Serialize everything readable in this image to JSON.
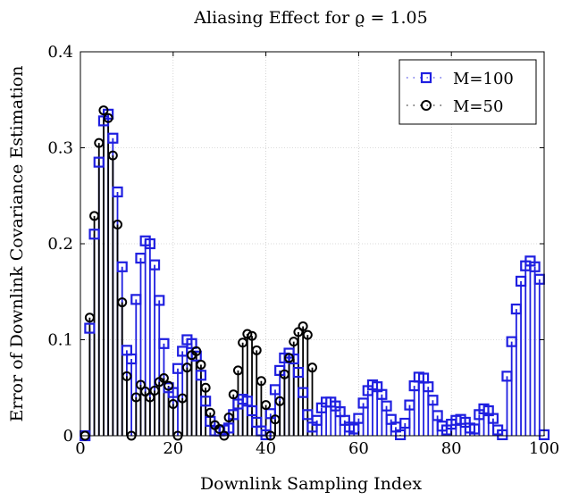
{
  "chart_data": {
    "type": "stem",
    "title": "Aliasing Effect for ϱ = 1.05",
    "xlabel": "Downlink Sampling Index",
    "ylabel": "Error of Downlink Covariance Estimation",
    "xlim": [
      0,
      100
    ],
    "ylim": [
      0,
      0.4
    ],
    "xticks": [
      "0",
      "20",
      "40",
      "60",
      "80",
      "100"
    ],
    "yticks": [
      "0",
      "0.1",
      "0.2",
      "0.3",
      "0.4"
    ],
    "grid": true,
    "legend_position": "top-right",
    "series": [
      {
        "name": "M=100",
        "color": "#1f1fe0",
        "marker": "square",
        "x": [
          1,
          2,
          3,
          4,
          5,
          6,
          7,
          8,
          9,
          10,
          11,
          12,
          13,
          14,
          15,
          16,
          17,
          18,
          19,
          20,
          21,
          22,
          23,
          24,
          25,
          26,
          27,
          28,
          29,
          30,
          31,
          32,
          33,
          34,
          35,
          36,
          37,
          38,
          39,
          40,
          41,
          42,
          43,
          44,
          45,
          46,
          47,
          48,
          49,
          50,
          51,
          52,
          53,
          54,
          55,
          56,
          57,
          58,
          59,
          60,
          61,
          62,
          63,
          64,
          65,
          66,
          67,
          68,
          69,
          70,
          71,
          72,
          73,
          74,
          75,
          76,
          77,
          78,
          79,
          80,
          81,
          82,
          83,
          84,
          85,
          86,
          87,
          88,
          89,
          90,
          91,
          92,
          93,
          94,
          95,
          96,
          97,
          98,
          99,
          100
        ],
        "values": [
          0,
          0.112,
          0.21,
          0.285,
          0.328,
          0.335,
          0.31,
          0.254,
          0.176,
          0.089,
          0.08,
          0.142,
          0.185,
          0.203,
          0.2,
          0.178,
          0.141,
          0.096,
          0.05,
          0.045,
          0.07,
          0.088,
          0.1,
          0.096,
          0.083,
          0.063,
          0.036,
          0.015,
          0.005,
          0.005,
          0.006,
          0.008,
          0.022,
          0.033,
          0.038,
          0.036,
          0.026,
          0.014,
          0.005,
          0.001,
          0.023,
          0.048,
          0.068,
          0.081,
          0.086,
          0.08,
          0.066,
          0.045,
          0.022,
          0.009,
          0.016,
          0.029,
          0.035,
          0.035,
          0.031,
          0.025,
          0.016,
          0.009,
          0.007,
          0.018,
          0.034,
          0.047,
          0.053,
          0.051,
          0.043,
          0.031,
          0.017,
          0.009,
          0.001,
          0.013,
          0.032,
          0.052,
          0.061,
          0.06,
          0.051,
          0.037,
          0.021,
          0.01,
          0.006,
          0.012,
          0.016,
          0.017,
          0.014,
          0.008,
          0.007,
          0.022,
          0.028,
          0.026,
          0.018,
          0.006,
          0.001,
          0.062,
          0.098,
          0.132,
          0.161,
          0.177,
          0.182,
          0.176,
          0.163,
          0.001
        ]
      },
      {
        "name": "M=50",
        "color": "#000000",
        "marker": "circle",
        "x": [
          1,
          2,
          3,
          4,
          5,
          6,
          7,
          8,
          9,
          10,
          11,
          12,
          13,
          14,
          15,
          16,
          17,
          18,
          19,
          20,
          21,
          22,
          23,
          24,
          25,
          26,
          27,
          28,
          29,
          30,
          31,
          32,
          33,
          34,
          35,
          36,
          37,
          38,
          39,
          40,
          41,
          42,
          43,
          44,
          45,
          46,
          47,
          48,
          49,
          50
        ],
        "values": [
          0,
          0.123,
          0.229,
          0.305,
          0.339,
          0.331,
          0.292,
          0.22,
          0.139,
          0.062,
          0,
          0.04,
          0.053,
          0.046,
          0.04,
          0.047,
          0.056,
          0.06,
          0.052,
          0.033,
          0,
          0.039,
          0.071,
          0.084,
          0.088,
          0.074,
          0.05,
          0.024,
          0.011,
          0.007,
          0,
          0.019,
          0.043,
          0.068,
          0.097,
          0.106,
          0.104,
          0.089,
          0.057,
          0.032,
          0,
          0.017,
          0.036,
          0.064,
          0.081,
          0.098,
          0.108,
          0.114,
          0.105,
          0.071
        ]
      }
    ]
  }
}
